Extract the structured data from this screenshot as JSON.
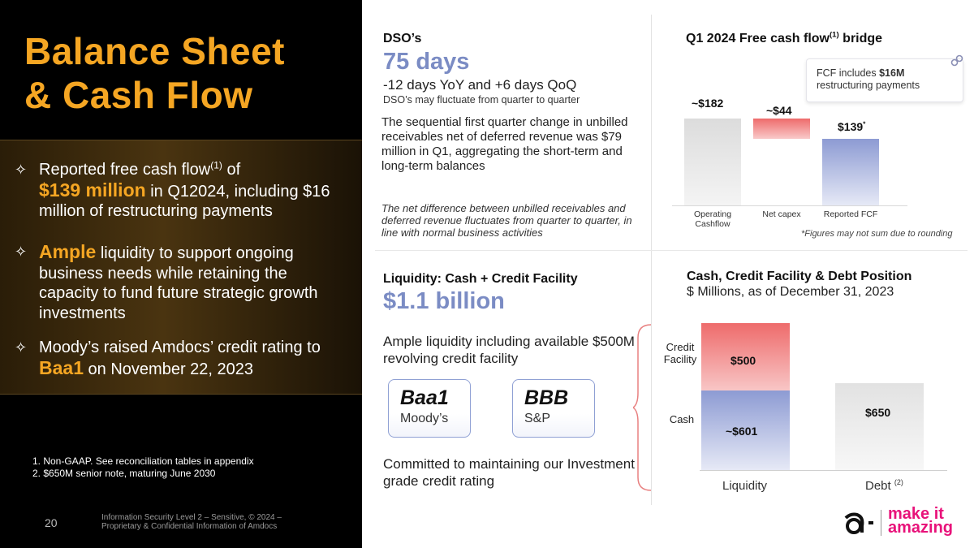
{
  "left": {
    "title_line1": "Balance Sheet",
    "title_line2": "& Cash Flow",
    "bullets": [
      {
        "t1": "Reported free cash flow",
        "sup": "(1)",
        "t2": " of",
        "gold": "$139 million",
        "t3": " in Q12024, including $16 million of restructuring payments"
      },
      {
        "gold": "Ample",
        "t1": " liquidity to support ongoing business needs while retaining the capacity to fund future strategic growth investments"
      },
      {
        "t1": "Moody’s raised Amdocs’ credit rating to ",
        "gold": "Baa1",
        "t2": " on November 22, 2023"
      }
    ],
    "footnotes": [
      "1.  Non-GAAP. See reconciliation tables in appendix",
      "2.  $650M senior note, maturing June 2030"
    ],
    "page_number": "20",
    "footer": "Information Security Level 2 – Sensitive, © 2024 – Proprietary & Confidential Information of Amdocs"
  },
  "dso": {
    "label": "DSO’s",
    "value": "75 days",
    "change": "-12 days YoY and +6 days QoQ",
    "note": "DSO’s may fluctuate from quarter to quarter",
    "body": "The sequential first quarter change in unbilled receivables net of deferred revenue was $79 million in Q1, aggregating the short-term and long-term balances",
    "italic": "The net difference between unbilled receivables and deferred revenue fluctuates from quarter to quarter, in line with normal business activities"
  },
  "fcf": {
    "title": "Q1 2024 Free cash flow",
    "title_sup": "(1)",
    "title_end": " bridge",
    "callout_pre": "FCF includes ",
    "callout_bold": "$16M",
    "callout_post": "restructuring payments",
    "note": "*Figures may not sum due to rounding"
  },
  "liquidity": {
    "label": "Liquidity: Cash + Credit Facility",
    "value": "$1.1 billion",
    "text": "Ample liquidity including available $500M revolving credit facility",
    "ratings": [
      {
        "value": "Baa1",
        "agency": "Moody’s"
      },
      {
        "value": "BBB",
        "agency": "S&P"
      }
    ],
    "commit": "Committed to maintaining our Investment grade credit rating"
  },
  "cash_debt": {
    "title": "Cash, Credit Facility & Debt Position",
    "subtitle": "$ Millions, as of December 31, 2023",
    "side_credit": "Credit Facility",
    "side_cash": "Cash",
    "debt_sup": "(2)"
  },
  "logo": {
    "line1": "make it",
    "line2": "amazing"
  },
  "chart_data": [
    {
      "type": "bar",
      "title": "Q1 2024 Free cash flow(1) bridge",
      "categories": [
        "Operating Cashflow",
        "Net capex",
        "Reported FCF"
      ],
      "values": [
        182,
        -44,
        139
      ],
      "labels": [
        "~$182",
        "~$44",
        "$139"
      ],
      "label_suffix": [
        "",
        "",
        "*"
      ],
      "colors": [
        "#e6e6e6",
        "#f08080",
        "#9aa6d8"
      ]
    },
    {
      "type": "bar",
      "title": "Cash, Credit Facility & Debt Position",
      "categories": [
        "Liquidity",
        "Debt"
      ],
      "series": [
        {
          "name": "Cash",
          "values": [
            601,
            0
          ],
          "labels": [
            "~$601",
            ""
          ]
        },
        {
          "name": "Credit Facility",
          "values": [
            500,
            0
          ],
          "labels": [
            "$500",
            ""
          ]
        },
        {
          "name": "Debt",
          "values": [
            0,
            650
          ],
          "labels": [
            "",
            "$650"
          ]
        }
      ],
      "colors": {
        "Cash": "#9aa6d8",
        "Credit Facility": "#f08080",
        "Debt": "#e8e8e8"
      }
    }
  ]
}
